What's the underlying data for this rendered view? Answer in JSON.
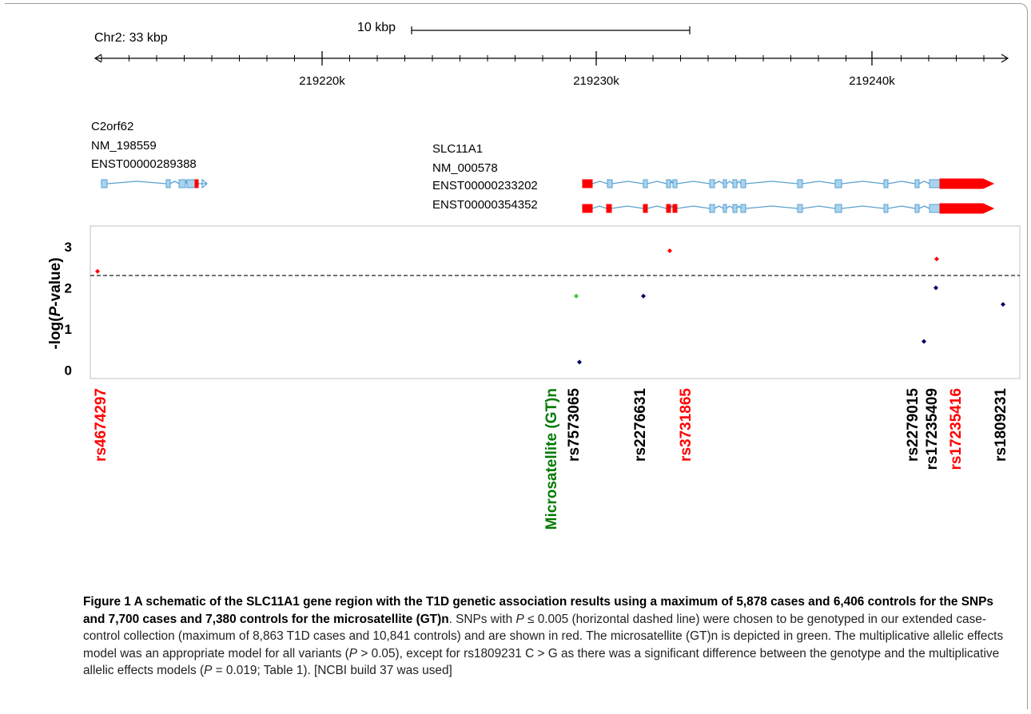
{
  "figure": {
    "scale_label": "10 kbp",
    "chromosome_label": "Chr2: 33 kbp",
    "axis_ticks": [
      "219220k",
      "219230k",
      "219240k"
    ],
    "genes": [
      {
        "name": "C2orf62",
        "refseq": "NM_198559",
        "transcripts": [
          "ENST00000289388"
        ]
      },
      {
        "name": "SLC11A1",
        "refseq": "NM_000578",
        "transcripts": [
          "ENST00000233202",
          "ENST00000354352"
        ]
      }
    ]
  },
  "chart_data": {
    "type": "scatter",
    "ylabel_prefix": "-log(",
    "ylabel_italic": "P",
    "ylabel_suffix": "-value)",
    "yticks": [
      "0",
      "1",
      "2",
      "3"
    ],
    "ylim": [
      -0.2,
      3.5
    ],
    "threshold": 2.3,
    "grid": false,
    "colors": {
      "red": "#ff0000",
      "navy": "#00006a",
      "green": "#33cc33",
      "label_green": "#007a00",
      "black": "#000000"
    },
    "points": [
      {
        "y": 2.4,
        "color": "red"
      },
      {
        "y": 1.8,
        "color": "green"
      },
      {
        "y": 0.2,
        "color": "navy"
      },
      {
        "y": 1.8,
        "color": "navy"
      },
      {
        "y": 2.9,
        "color": "red"
      },
      {
        "y": 0.7,
        "color": "navy"
      },
      {
        "y": 2.0,
        "color": "navy"
      },
      {
        "y": 2.7,
        "color": "red"
      },
      {
        "y": 1.6,
        "color": "navy"
      }
    ],
    "snp_labels": [
      {
        "text": "rs4674297",
        "color": "red"
      },
      {
        "text": "Microsatellite (GT)n",
        "color": "label_green"
      },
      {
        "text": "rs7573065",
        "color": "black"
      },
      {
        "text": "rs2276631",
        "color": "black"
      },
      {
        "text": "rs3731865",
        "color": "red"
      },
      {
        "text": "rs2279015",
        "color": "black"
      },
      {
        "text": "rs17235409",
        "color": "black"
      },
      {
        "text": "rs17235416",
        "color": "red"
      },
      {
        "text": "rs1809231",
        "color": "black"
      }
    ]
  },
  "caption": {
    "title": "Figure 1 A schematic of the SLC11A1 gene region with the T1D genetic association results using a maximum of 5,878 cases and 6,406 controls for the SNPs and 7,700 cases and 7,380 controls for the microsatellite (GT)n",
    "s1_a": ". SNPs with ",
    "p1": "P",
    "s1_b": " ≤ 0.005 (horizontal dashed line) were chosen to be genotyped in our extended case-control collection (maximum of 8,863 T1D cases and 10,841 controls) and are shown in red. The microsatellite (GT)n is depicted in green. The multiplicative allelic effects model was an appropriate model for all variants (",
    "p2": "P",
    "s1_c": " > 0.05), except for rs1809231 C > G as there was a significant difference between the genotype and the multiplicative allelic effects models (",
    "p3": "P",
    "s1_d": " = 0.019; Table 1). [NCBI build 37 was used]"
  }
}
